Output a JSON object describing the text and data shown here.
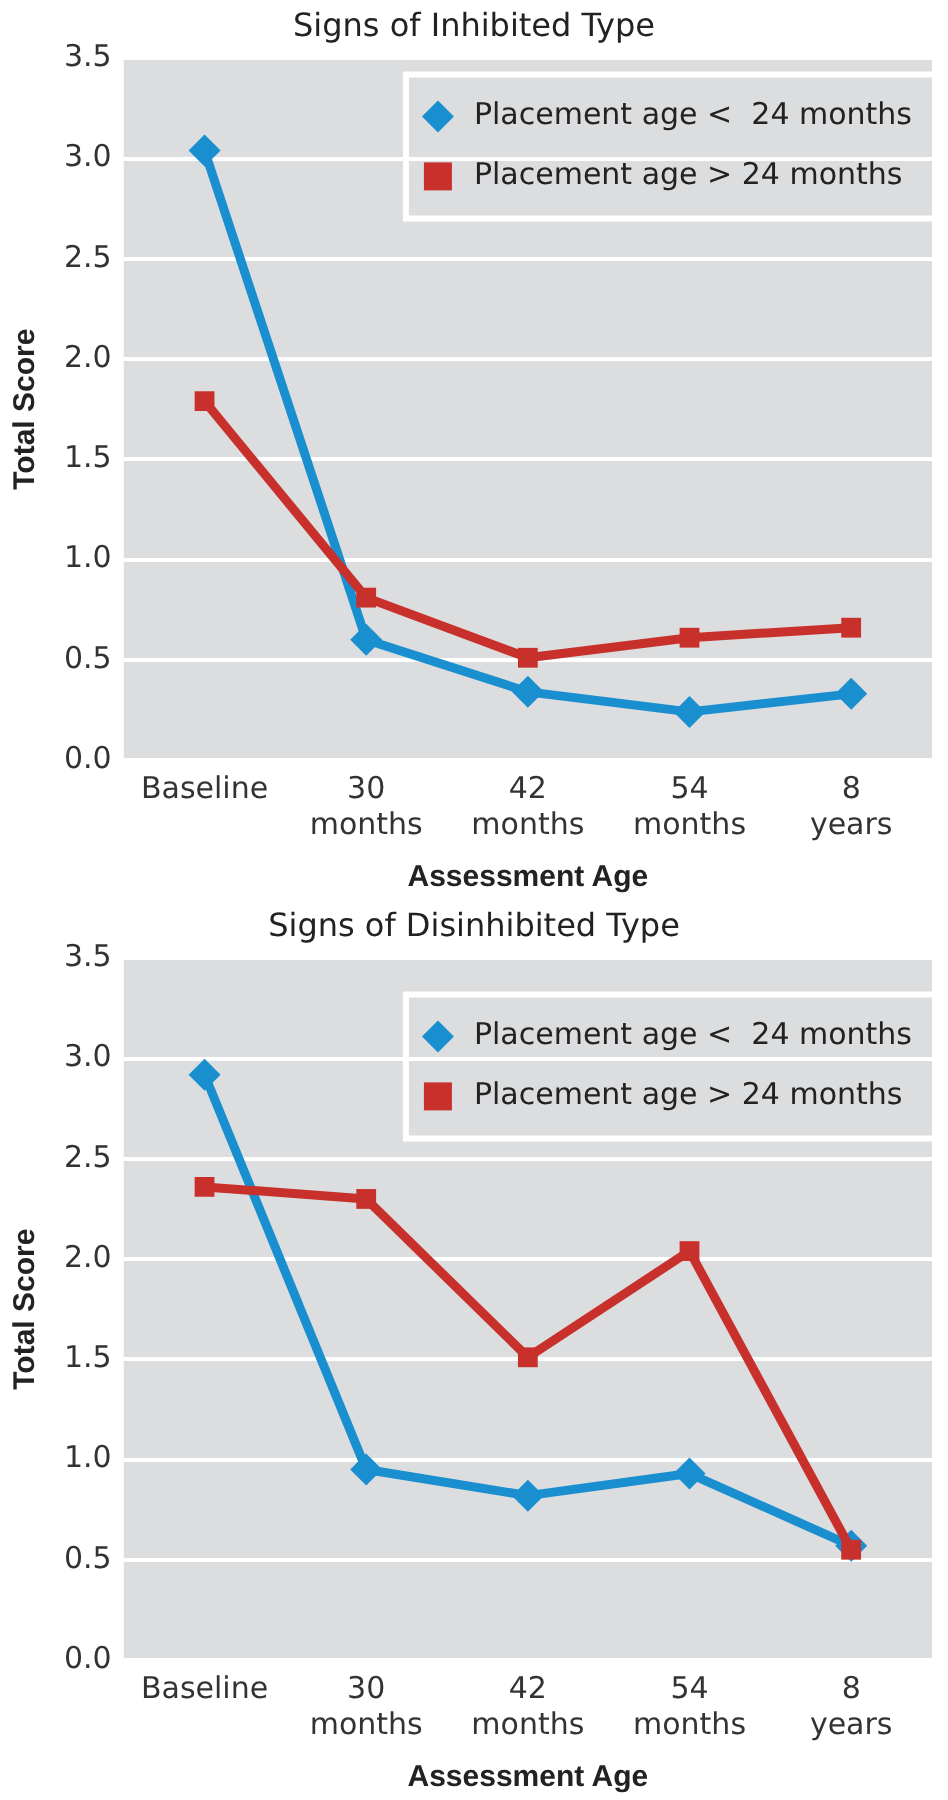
{
  "chart_data": [
    {
      "type": "line",
      "title": "Signs of Inhibited Type",
      "xlabel": "Assessment Age",
      "ylabel": "Total Score",
      "categories": [
        "Baseline",
        "30\nmonths",
        "42\nmonths",
        "54\nmonths",
        "8\nyears"
      ],
      "series": [
        {
          "name": "Placement age <  24 months",
          "color": "#1a8fd0",
          "marker": "diamond",
          "values": [
            3.04,
            0.6,
            0.34,
            0.24,
            0.33
          ]
        },
        {
          "name": "Placement age > 24 months",
          "color": "#c8302c",
          "marker": "square",
          "values": [
            1.79,
            0.81,
            0.51,
            0.61,
            0.66
          ]
        }
      ],
      "ylim": [
        0,
        3.5
      ],
      "yticks": [
        {
          "value": 0,
          "label": "0.0"
        },
        0.5,
        {
          "value": 1,
          "label": "1.0"
        },
        1.5,
        {
          "value": 2,
          "label": "2.0"
        },
        2.5,
        {
          "value": 3,
          "label": "3.0"
        },
        3.5
      ],
      "grid": "y",
      "legend": "top right",
      "line_style": "solid"
    },
    {
      "type": "line",
      "title": "Signs of Disinhibited Type",
      "xlabel": "Assessment Age",
      "ylabel": "Total Score",
      "categories": [
        "Baseline",
        "30\nmonths",
        "42\nmonths",
        "54\nmonths",
        "8\nyears"
      ],
      "series": [
        {
          "name": "Placement age <  24 months",
          "color": "#1a8fd0",
          "marker": "diamond",
          "values": [
            2.92,
            0.95,
            0.82,
            0.93,
            0.57
          ]
        },
        {
          "name": "Placement age > 24 months",
          "color": "#c8302c",
          "marker": "square",
          "values": [
            2.36,
            2.3,
            1.51,
            2.04,
            0.55
          ]
        }
      ],
      "ylim": [
        0,
        3.5
      ],
      "yticks": [
        {
          "value": 0,
          "label": "0.0"
        },
        0.5,
        {
          "value": 1,
          "label": "1.0"
        },
        1.5,
        {
          "value": 2,
          "label": "2.0"
        },
        2.5,
        {
          "value": 3,
          "label": "3.0"
        },
        3.5
      ],
      "grid": "y",
      "legend": "top right",
      "line_style": "solid"
    }
  ]
}
